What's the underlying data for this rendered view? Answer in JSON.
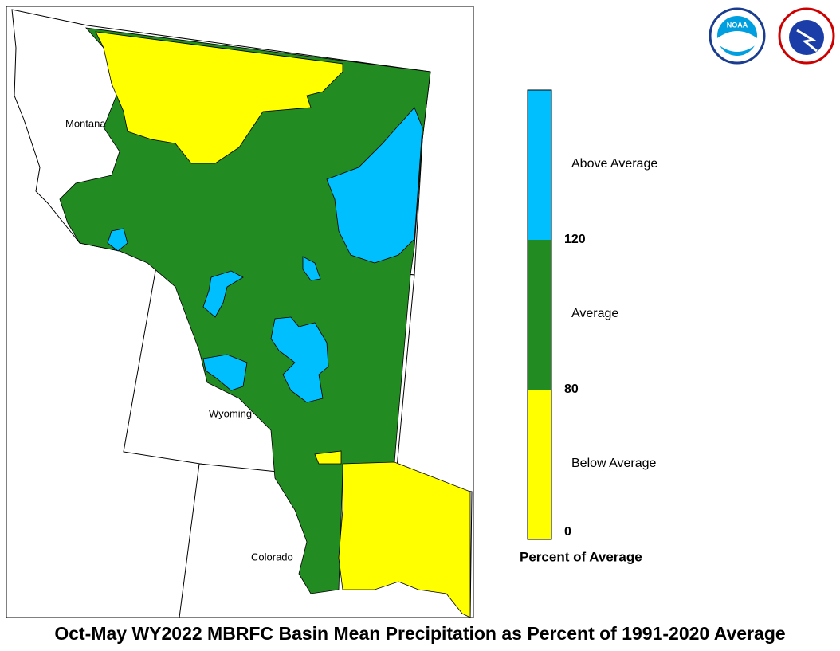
{
  "title": "Oct-May WY2022 MBRFC Basin Mean Precipitation as Percent of 1991-2020 Average",
  "map": {
    "states": [
      "Montana",
      "Wyoming",
      "Colorado"
    ]
  },
  "logos": [
    "NOAA"
  ],
  "legend": {
    "title": "Percent of Average",
    "bands": [
      {
        "label": "Below Average",
        "color": "#ffff00"
      },
      {
        "label": "Average",
        "color": "#228b22"
      },
      {
        "label": "Above Average",
        "color": "#00bfff"
      }
    ],
    "ticks": [
      0,
      80,
      120
    ]
  }
}
